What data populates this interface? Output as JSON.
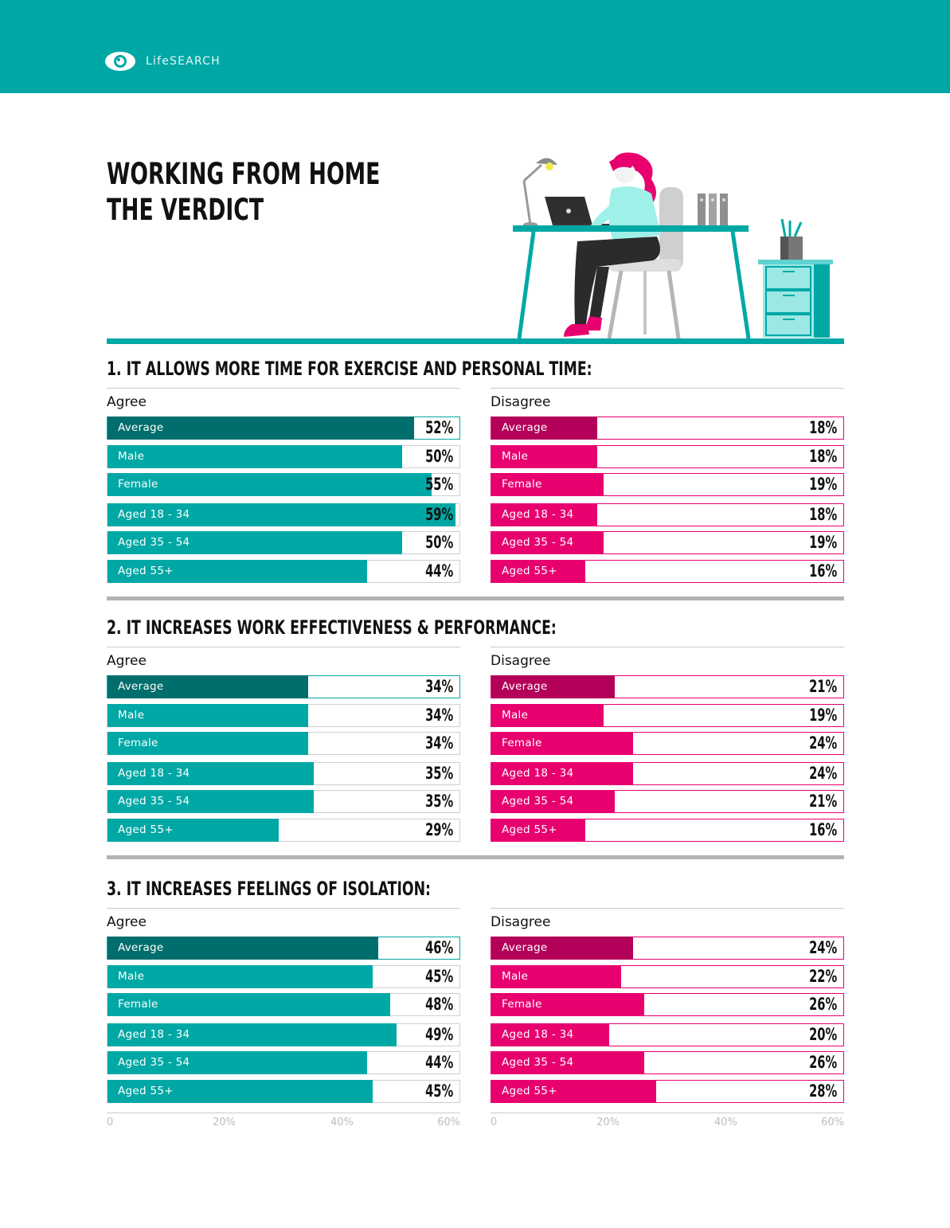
{
  "brand": {
    "logo_text": "LifeSEARCH"
  },
  "title_lines": [
    "WORKING FROM HOME",
    "THE VERDICT"
  ],
  "colors": {
    "header": "#00a8a5",
    "agree": "#00a8a5",
    "agree_average": "#006e6c",
    "disagree": "#e8006f",
    "disagree_average": "#b30059"
  },
  "chart_data": [
    {
      "type": "bar",
      "title": "1.  IT ALLOWS MORE TIME FOR EXERCISE AND PERSONAL TIME:",
      "orientation": "horizontal",
      "categories": [
        "Average",
        "Male",
        "Female",
        "Aged 18 - 34",
        "Aged 35 - 54",
        "Aged 55+"
      ],
      "series": [
        {
          "name": "Agree",
          "values": [
            52,
            50,
            55,
            59,
            50,
            44
          ],
          "labels": [
            "52%",
            "50%",
            "55%",
            "59%",
            "50%",
            "44%"
          ]
        },
        {
          "name": "Disagree",
          "values": [
            18,
            18,
            19,
            18,
            19,
            16
          ],
          "labels": [
            "18%",
            "18%",
            "19%",
            "18%",
            "19%",
            "16%"
          ]
        }
      ],
      "xlim": [
        0,
        60
      ]
    },
    {
      "type": "bar",
      "title": "2.  IT INCREASES WORK EFFECTIVENESS & PERFORMANCE:",
      "orientation": "horizontal",
      "categories": [
        "Average",
        "Male",
        "Female",
        "Aged 18 - 34",
        "Aged 35 - 54",
        "Aged 55+"
      ],
      "series": [
        {
          "name": "Agree",
          "values": [
            34,
            34,
            34,
            35,
            35,
            29
          ],
          "labels": [
            "34%",
            "34%",
            "34%",
            "35%",
            "35%",
            "29%"
          ]
        },
        {
          "name": "Disagree",
          "values": [
            21,
            19,
            24,
            24,
            21,
            16
          ],
          "labels": [
            "21%",
            "19%",
            "24%",
            "24%",
            "21%",
            "16%"
          ]
        }
      ],
      "xlim": [
        0,
        60
      ]
    },
    {
      "type": "bar",
      "title": "3.   IT INCREASES FEELINGS OF ISOLATION:",
      "orientation": "horizontal",
      "categories": [
        "Average",
        "Male",
        "Female",
        "Aged 18 - 34",
        "Aged 35 - 54",
        "Aged 55+"
      ],
      "series": [
        {
          "name": "Agree",
          "values": [
            46,
            45,
            48,
            49,
            44,
            45
          ],
          "labels": [
            "46%",
            "45%",
            "48%",
            "49%",
            "44%",
            "45%"
          ]
        },
        {
          "name": "Disagree",
          "values": [
            24,
            22,
            26,
            20,
            26,
            28
          ],
          "labels": [
            "24%",
            "22%",
            "26%",
            "20%",
            "26%",
            "28%"
          ]
        }
      ],
      "xlim": [
        0,
        60
      ],
      "xticks": [
        "0",
        "20%",
        "40%",
        "60%"
      ]
    }
  ]
}
